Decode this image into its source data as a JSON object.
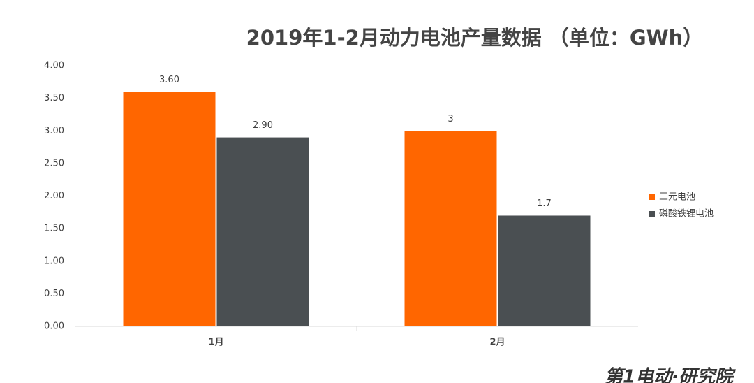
{
  "chart_data": {
    "type": "bar",
    "title": "2019年1-2月动力电池产量数据 （单位：GWh）",
    "categories": [
      "1月",
      "2月"
    ],
    "series": [
      {
        "name": "三元电池",
        "color": "#ff6600",
        "values": [
          3.6,
          3
        ],
        "value_labels": [
          "3.60",
          "3"
        ]
      },
      {
        "name": "磷酸铁锂电池",
        "color": "#4a4f52",
        "values": [
          2.9,
          1.7
        ],
        "value_labels": [
          "2.90",
          "1.7"
        ]
      }
    ],
    "ylim": [
      0,
      4
    ],
    "yticks": [
      {
        "value": 0,
        "label": "0.00"
      },
      {
        "value": 0.5,
        "label": "0.50"
      },
      {
        "value": 1,
        "label": "1.00"
      },
      {
        "value": 1.5,
        "label": "1.50"
      },
      {
        "value": 2,
        "label": "2.00"
      },
      {
        "value": 2.5,
        "label": "2.50"
      },
      {
        "value": 3,
        "label": "3.00"
      },
      {
        "value": 3.5,
        "label": "3.50"
      },
      {
        "value": 4,
        "label": "4.00"
      }
    ],
    "grid": false,
    "legend": "right",
    "watermark": "第1电动·研究院"
  }
}
